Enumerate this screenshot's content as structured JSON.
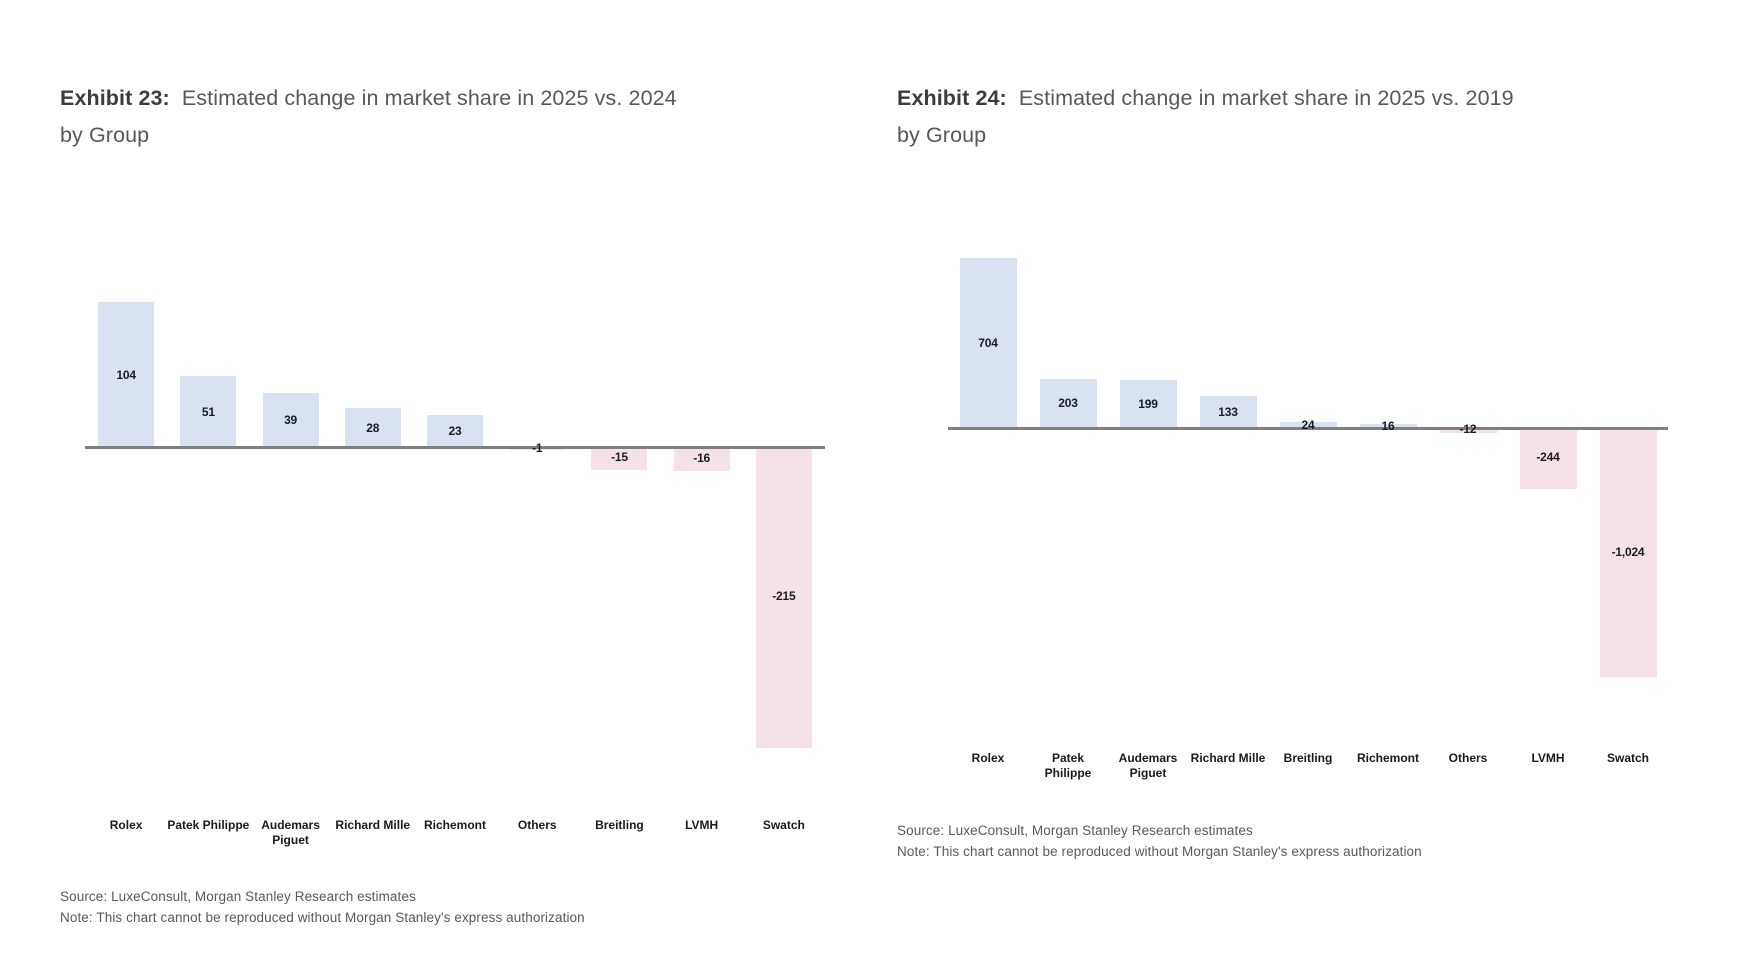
{
  "page": {
    "background": "#ffffff"
  },
  "chart_data": [
    {
      "type": "bar",
      "exhibit": "Exhibit 23:",
      "title": "Estimated change in market share in 2025 vs. 2024 by Group",
      "title_line1": "Estimated change in market share in 2025 vs. 2024",
      "title_line2": "by Group",
      "categories": [
        "Rolex",
        "Patek Philippe",
        "Audemars Piguet",
        "Richard Mille",
        "Richemont",
        "Others",
        "Breitling",
        "LVMH",
        "Swatch"
      ],
      "values": [
        104,
        51,
        39,
        28,
        23,
        -1,
        -15,
        -16,
        -215
      ],
      "value_labels_visible": [
        "104",
        "51",
        "39",
        "28",
        "23",
        "-1",
        "-15",
        "-16",
        "-215"
      ],
      "xlabel": "",
      "ylabel": "",
      "y_axis_ticks": "none",
      "grid": false,
      "legend": "none",
      "value_label_position": "center",
      "bar_color_positive": "#d8e2f0",
      "bar_color_negative": "#f4e2e8",
      "axis_line_color": "#7f7f7f",
      "source": "Source: LuxeConsult, Morgan Stanley Research estimates",
      "note": "Note: This chart cannot be reproduced without Morgan Stanley's express authorization"
    },
    {
      "type": "bar",
      "exhibit": "Exhibit 24:",
      "title": "Estimated change in market share in 2025 vs. 2019 by Group",
      "title_line1": "Estimated change in market share in 2025 vs. 2019",
      "title_line2": "by Group",
      "categories": [
        "Rolex",
        "Patek Philippe",
        "Audemars Piguet",
        "Richard Mille",
        "Breitling",
        "Richemont",
        "Others",
        "LVMH",
        "Swatch"
      ],
      "values": [
        704,
        203,
        199,
        133,
        24,
        16,
        -12,
        -244,
        -1024
      ],
      "value_labels_visible": [
        "704",
        "203",
        "199",
        "133",
        "24",
        "16",
        "-12",
        "-244",
        "-1,024"
      ],
      "xlabel": "",
      "ylabel": "",
      "y_axis_ticks": "none",
      "grid": false,
      "legend": "none",
      "value_label_position": "center",
      "bar_color_positive": "#d8e2f0",
      "bar_color_negative": "#f4e2e8",
      "axis_line_color": "#7f7f7f",
      "source": "Source: LuxeConsult, Morgan Stanley Research estimates",
      "note": "Note: This chart cannot be reproduced without Morgan Stanley's express authorization"
    }
  ]
}
